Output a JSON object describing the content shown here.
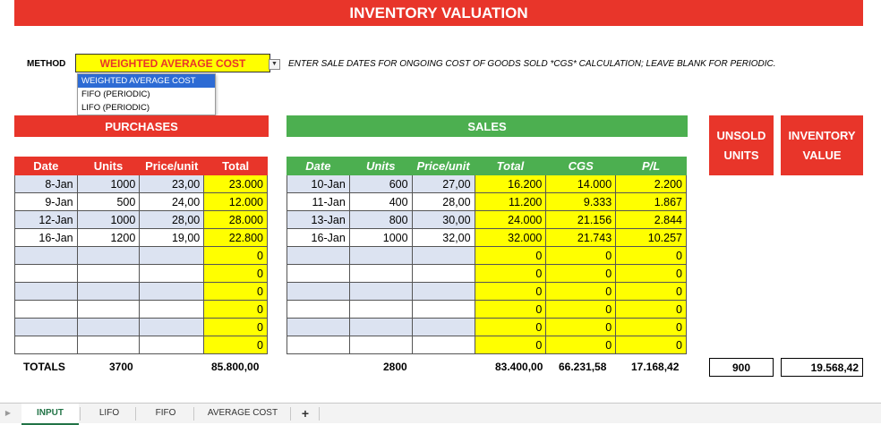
{
  "title": "INVENTORY VALUATION",
  "method": {
    "label": "METHOD",
    "value": "WEIGHTED AVERAGE COST",
    "options": [
      "WEIGHTED AVERAGE COST",
      "FIFO (PERIODIC)",
      "LIFO (PERIODIC)"
    ],
    "instructions": "ENTER SALE DATES FOR ONGOING COST OF GOODS SOLD *CGS* CALCULATION; LEAVE BLANK FOR PERIODIC."
  },
  "purchases": {
    "title": "PURCHASES",
    "headers": [
      "Date",
      "Units",
      "Price/unit",
      "Total"
    ],
    "rows": [
      [
        "8-Jan",
        "1000",
        "23,00",
        "23.000"
      ],
      [
        "9-Jan",
        "500",
        "24,00",
        "12.000"
      ],
      [
        "12-Jan",
        "1000",
        "28,00",
        "28.000"
      ],
      [
        "16-Jan",
        "1200",
        "19,00",
        "22.800"
      ],
      [
        "",
        "",
        "",
        "0"
      ],
      [
        "",
        "",
        "",
        "0"
      ],
      [
        "",
        "",
        "",
        "0"
      ],
      [
        "",
        "",
        "",
        "0"
      ],
      [
        "",
        "",
        "",
        "0"
      ],
      [
        "",
        "",
        "",
        "0"
      ]
    ],
    "totals_label": "TOTALS",
    "total_units": "3700",
    "total_value": "85.800,00"
  },
  "sales": {
    "title": "SALES",
    "headers": [
      "Date",
      "Units",
      "Price/unit",
      "Total",
      "CGS",
      "P/L"
    ],
    "rows": [
      [
        "10-Jan",
        "600",
        "27,00",
        "16.200",
        "14.000",
        "2.200"
      ],
      [
        "11-Jan",
        "400",
        "28,00",
        "11.200",
        "9.333",
        "1.867"
      ],
      [
        "13-Jan",
        "800",
        "30,00",
        "24.000",
        "21.156",
        "2.844"
      ],
      [
        "16-Jan",
        "1000",
        "32,00",
        "32.000",
        "21.743",
        "10.257"
      ],
      [
        "",
        "",
        "",
        "0",
        "0",
        "0"
      ],
      [
        "",
        "",
        "",
        "0",
        "0",
        "0"
      ],
      [
        "",
        "",
        "",
        "0",
        "0",
        "0"
      ],
      [
        "",
        "",
        "",
        "0",
        "0",
        "0"
      ],
      [
        "",
        "",
        "",
        "0",
        "0",
        "0"
      ],
      [
        "",
        "",
        "",
        "0",
        "0",
        "0"
      ]
    ],
    "total_units": "2800",
    "total_value": "83.400,00",
    "total_cgs": "66.231,58",
    "total_pl": "17.168,42"
  },
  "unsold": {
    "title": "UNSOLD UNITS",
    "value": "900"
  },
  "inventory": {
    "title": "INVENTORY VALUE",
    "value": "19.568,42"
  },
  "tabs": [
    "INPUT",
    "LIFO",
    "FIFO",
    "AVERAGE COST",
    "+"
  ],
  "colors": {
    "red": "#e8352a",
    "green": "#4caf50",
    "yellow": "#ffff00",
    "light_blue": "#dce3f1",
    "excel_green": "#217346"
  }
}
